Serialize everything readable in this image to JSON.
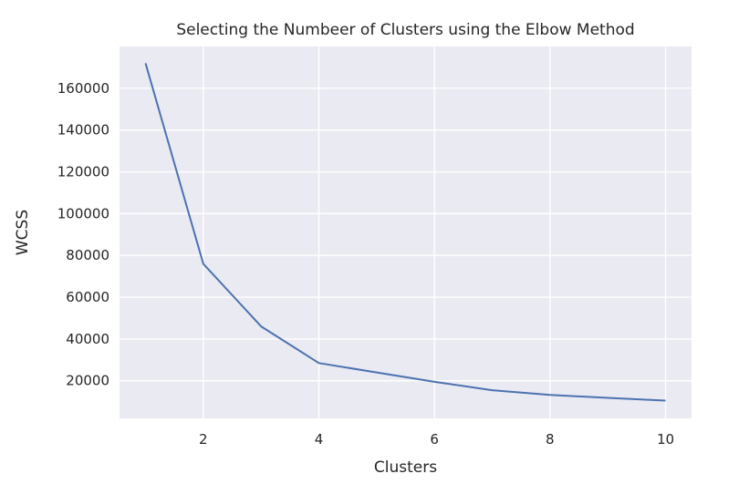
{
  "chart_data": {
    "type": "line",
    "title": "Selecting the Numbeer of Clusters using the Elbow Method",
    "xlabel": "Clusters",
    "ylabel": "WCSS",
    "x": [
      1,
      2,
      3,
      4,
      5,
      6,
      7,
      8,
      9,
      10
    ],
    "series": [
      {
        "values": [
          172000,
          76000,
          46000,
          28500,
          24000,
          19500,
          15500,
          13200,
          11800,
          10500
        ]
      }
    ],
    "xlim": [
      0.55,
      10.45
    ],
    "ylim": [
      2000,
      180000
    ],
    "xticks": [
      2,
      4,
      6,
      8,
      10
    ],
    "xtick_labels": [
      "2",
      "4",
      "6",
      "8",
      "10"
    ],
    "yticks": [
      20000,
      40000,
      60000,
      80000,
      100000,
      120000,
      140000,
      160000
    ],
    "ytick_labels": [
      "20000",
      "40000",
      "60000",
      "80000",
      "100000",
      "120000",
      "140000",
      "160000"
    ],
    "grid": true,
    "line_color": "#4c72b0",
    "background_color": "#eaeaf2",
    "grid_color": "#ffffff"
  }
}
